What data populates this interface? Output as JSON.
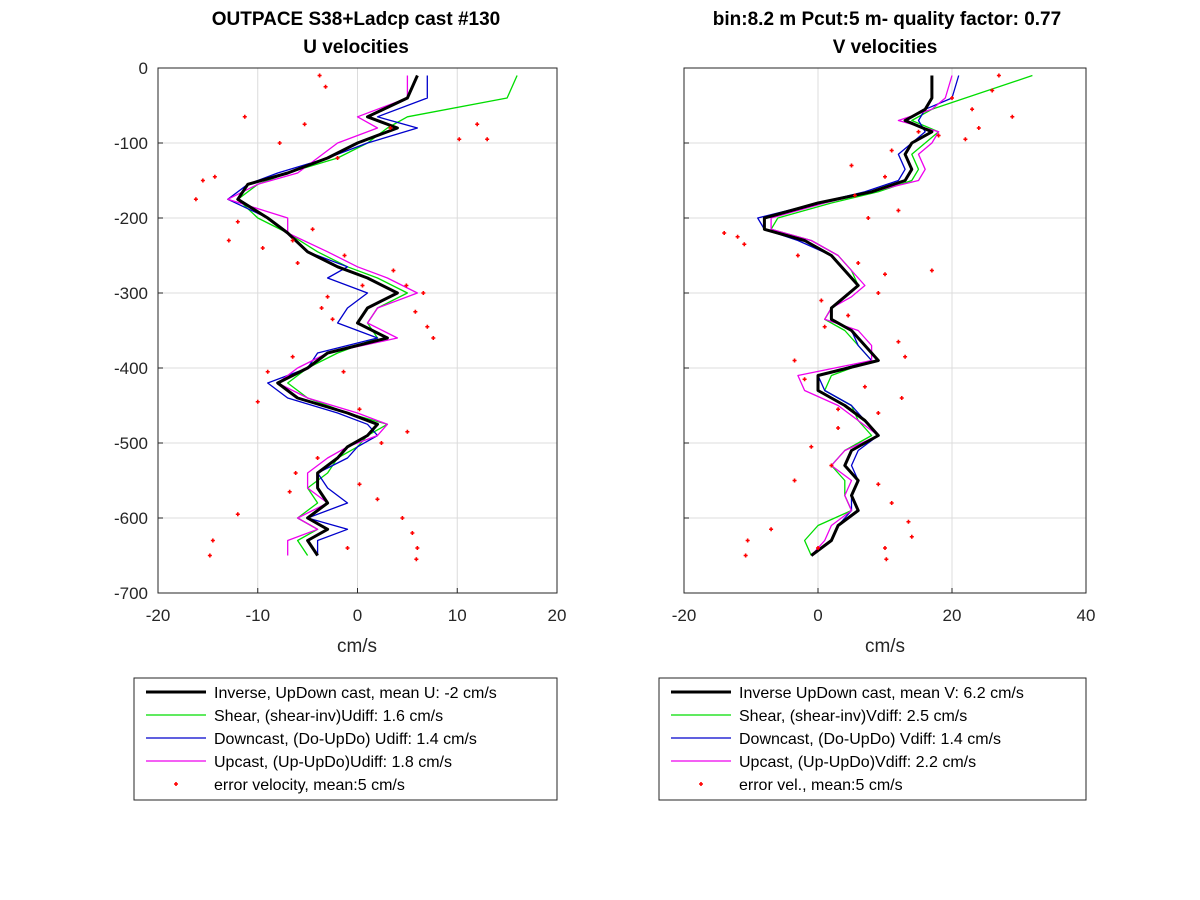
{
  "chart_data": [
    {
      "type": "line",
      "title": "OUTPACE S38+Ladcp cast #130",
      "subtitle": "U velocities",
      "xlabel": "cm/s",
      "ylabel": "",
      "xlim": [
        -20,
        20
      ],
      "ylim": [
        -700,
        0
      ],
      "xticks": [
        "-20",
        "-10",
        "0",
        "10",
        "20"
      ],
      "yticks": [
        "0",
        "-100",
        "-200",
        "-300",
        "-400",
        "-500",
        "-600",
        "-700"
      ],
      "grid": true,
      "legend_position": "below",
      "legend": [
        "Inverse, UpDown cast, mean U:  -2 cm/s",
        "Shear, (shear-inv)Udiff:  1.6 cm/s",
        "Downcast, (Do-UpDo) Udiff:  1.4 cm/s",
        "Upcast, (Up-UpDo)Udiff:  1.8 cm/s",
        "error velocity, mean:5 cm/s"
      ],
      "depth": [
        -10,
        -40,
        -65,
        -80,
        -100,
        -120,
        -140,
        -155,
        -175,
        -200,
        -220,
        -245,
        -265,
        -280,
        -300,
        -320,
        -340,
        -360,
        -380,
        -400,
        -420,
        -440,
        -460,
        -475,
        -490,
        -505,
        -520,
        -540,
        -560,
        -580,
        -600,
        -615,
        -630,
        -650
      ],
      "series": [
        {
          "name": "Inverse",
          "color": "#000000",
          "width": 3,
          "values": [
            6,
            5,
            1,
            4,
            0,
            -3,
            -7,
            -11,
            -12,
            -9,
            -7,
            -5,
            -2,
            1,
            4,
            1,
            0,
            3,
            -3,
            -5,
            -8,
            -6,
            -1,
            2,
            1,
            -1,
            -2,
            -4,
            -4,
            -3,
            -5,
            -3,
            -5,
            -4
          ]
        },
        {
          "name": "Shear",
          "color": "#00dd00",
          "width": 1.3,
          "values": [
            16,
            15,
            5,
            3,
            1,
            -2,
            -7,
            -10,
            -12,
            -10,
            -7,
            -4,
            -1,
            2,
            5,
            2,
            1,
            2,
            -2,
            -5,
            -7,
            -5,
            -1,
            3,
            1,
            0,
            -2,
            -3,
            -5,
            -4,
            -6,
            -4,
            -6,
            -5
          ]
        },
        {
          "name": "Downcast",
          "color": "#0000cc",
          "width": 1.3,
          "values": [
            7,
            7,
            2,
            6,
            1,
            -3,
            -8,
            -11,
            -13,
            -9,
            -7,
            -5,
            -1,
            -3,
            1,
            -1,
            -2,
            2,
            -4,
            -5,
            -9,
            -7,
            -2,
            1,
            2,
            0,
            -1,
            -4,
            -3,
            -1,
            -5,
            -1,
            -4,
            -4
          ]
        },
        {
          "name": "Upcast",
          "color": "#ee00ee",
          "width": 1.3,
          "values": [
            5,
            5,
            0,
            2,
            -2,
            -4,
            -6,
            -10,
            -13,
            -7,
            -7,
            -3,
            0,
            3,
            6,
            2,
            1,
            4,
            -3,
            -6,
            -8,
            -5,
            0,
            3,
            2,
            -1,
            -3,
            -5,
            -5,
            -3,
            -6,
            -4,
            -7,
            -7
          ]
        }
      ],
      "error_velocity": [
        {
          "x": -3.8,
          "y": -10
        },
        {
          "x": -3.2,
          "y": -25
        },
        {
          "x": -11.3,
          "y": -65
        },
        {
          "x": -5.3,
          "y": -75
        },
        {
          "x": 3.3,
          "y": -80
        },
        {
          "x": -7.8,
          "y": -100
        },
        {
          "x": 10.2,
          "y": -95
        },
        {
          "x": 12.0,
          "y": -75
        },
        {
          "x": -2.0,
          "y": -120
        },
        {
          "x": -15.5,
          "y": -150
        },
        {
          "x": -14.3,
          "y": -145
        },
        {
          "x": -16.2,
          "y": -175
        },
        {
          "x": -12.0,
          "y": -205
        },
        {
          "x": -12.9,
          "y": -230
        },
        {
          "x": -4.5,
          "y": -215
        },
        {
          "x": -6.5,
          "y": -230
        },
        {
          "x": -9.5,
          "y": -240
        },
        {
          "x": -6.0,
          "y": -260
        },
        {
          "x": -1.3,
          "y": -250
        },
        {
          "x": 3.6,
          "y": -270
        },
        {
          "x": 4.9,
          "y": -290
        },
        {
          "x": 6.6,
          "y": -300
        },
        {
          "x": -3.6,
          "y": -320
        },
        {
          "x": -2.5,
          "y": -335
        },
        {
          "x": 5.8,
          "y": -325
        },
        {
          "x": 7.6,
          "y": -360
        },
        {
          "x": -6.5,
          "y": -385
        },
        {
          "x": -9.0,
          "y": -405
        },
        {
          "x": -10.0,
          "y": -445
        },
        {
          "x": -1.4,
          "y": -405
        },
        {
          "x": 0.2,
          "y": -455
        },
        {
          "x": 5.0,
          "y": -485
        },
        {
          "x": 2.4,
          "y": -500
        },
        {
          "x": -4.0,
          "y": -520
        },
        {
          "x": -6.2,
          "y": -540
        },
        {
          "x": -6.8,
          "y": -565
        },
        {
          "x": 0.2,
          "y": -555
        },
        {
          "x": 2.0,
          "y": -575
        },
        {
          "x": 4.5,
          "y": -600
        },
        {
          "x": -12.0,
          "y": -595
        },
        {
          "x": 5.5,
          "y": -620
        },
        {
          "x": 6.0,
          "y": -640
        },
        {
          "x": -14.5,
          "y": -630
        },
        {
          "x": -14.8,
          "y": -650
        },
        {
          "x": 5.9,
          "y": -655
        },
        {
          "x": -1.0,
          "y": -640
        },
        {
          "x": 13.0,
          "y": -95
        },
        {
          "x": 0.5,
          "y": -290
        },
        {
          "x": -3.0,
          "y": -305
        },
        {
          "x": 7.0,
          "y": -345
        }
      ]
    },
    {
      "type": "line",
      "title": "bin:8.2 m  Pcut:5 m- quality factor:  0.77",
      "subtitle": "V velocities",
      "xlabel": "cm/s",
      "ylabel": "",
      "xlim": [
        -20,
        40
      ],
      "ylim": [
        -700,
        0
      ],
      "xticks": [
        "-20",
        "0",
        "20",
        "40"
      ],
      "grid": true,
      "legend_position": "below",
      "legend": [
        "Inverse UpDown cast, mean V:  6.2 cm/s",
        "Shear, (shear-inv)Vdiff:  2.5 cm/s",
        "Downcast, (Do-UpDo) Vdiff:  1.4 cm/s",
        "Upcast, (Up-UpDo)Vdiff:  2.2 cm/s",
        "error vel., mean:5 cm/s"
      ],
      "depth": [
        -10,
        -40,
        -55,
        -70,
        -85,
        -100,
        -115,
        -135,
        -150,
        -165,
        -180,
        -200,
        -215,
        -230,
        -250,
        -270,
        -290,
        -305,
        -320,
        -335,
        -350,
        -370,
        -390,
        -410,
        -430,
        -450,
        -470,
        -490,
        -510,
        -530,
        -550,
        -570,
        -590,
        -610,
        -630,
        -650
      ],
      "series": [
        {
          "name": "Inverse",
          "color": "#000000",
          "width": 3,
          "values": [
            17,
            17,
            16,
            13,
            17,
            14,
            13,
            14,
            13,
            8,
            0,
            -8,
            -8,
            -2,
            2,
            4,
            6,
            4,
            2,
            2,
            5,
            7,
            9,
            0,
            0,
            4,
            7,
            9,
            5,
            4,
            6,
            5,
            6,
            3,
            2,
            -1
          ]
        },
        {
          "name": "Shear",
          "color": "#00dd00",
          "width": 1.3,
          "values": [
            32,
            22,
            17,
            14,
            18,
            16,
            14,
            15,
            14,
            9,
            2,
            -6,
            -7,
            -1,
            3,
            5,
            6,
            4,
            2,
            1,
            4,
            6,
            8,
            2,
            1,
            5,
            6,
            8,
            4,
            2,
            4,
            4,
            5,
            0,
            -2,
            -1
          ]
        },
        {
          "name": "Downcast",
          "color": "#0000cc",
          "width": 1.3,
          "values": [
            21,
            20,
            16,
            15,
            16,
            14,
            12,
            13,
            12,
            7,
            0,
            -9,
            -8,
            -3,
            2,
            4,
            6,
            4,
            2,
            2,
            5,
            6,
            8,
            0,
            1,
            5,
            7,
            9,
            6,
            5,
            6,
            5,
            5,
            3,
            2,
            -1
          ]
        },
        {
          "name": "Upcast",
          "color": "#ee00ee",
          "width": 1.3,
          "values": [
            20,
            19,
            17,
            12,
            18,
            17,
            15,
            16,
            15,
            8,
            1,
            -7,
            -7,
            -1,
            3,
            5,
            7,
            5,
            2,
            1,
            6,
            8,
            8,
            -3,
            -2,
            3,
            6,
            9,
            4,
            2,
            5,
            4,
            5,
            2,
            1,
            -1
          ]
        }
      ],
      "error_velocity": [
        {
          "x": 27.0,
          "y": -10
        },
        {
          "x": 26.0,
          "y": -30
        },
        {
          "x": 20.0,
          "y": -40
        },
        {
          "x": 23.0,
          "y": -55
        },
        {
          "x": 29.0,
          "y": -65
        },
        {
          "x": 15.0,
          "y": -85
        },
        {
          "x": 18.0,
          "y": -90
        },
        {
          "x": 22.0,
          "y": -95
        },
        {
          "x": 11.0,
          "y": -110
        },
        {
          "x": 5.0,
          "y": -130
        },
        {
          "x": 10.0,
          "y": -145
        },
        {
          "x": 5.5,
          "y": -170
        },
        {
          "x": 12.0,
          "y": -190
        },
        {
          "x": 7.5,
          "y": -200
        },
        {
          "x": -14.0,
          "y": -220
        },
        {
          "x": -12.0,
          "y": -225
        },
        {
          "x": -11.0,
          "y": -235
        },
        {
          "x": -3.0,
          "y": -250
        },
        {
          "x": 6.0,
          "y": -260
        },
        {
          "x": 10.0,
          "y": -275
        },
        {
          "x": 9.0,
          "y": -300
        },
        {
          "x": 0.5,
          "y": -310
        },
        {
          "x": 1.0,
          "y": -345
        },
        {
          "x": 4.5,
          "y": -330
        },
        {
          "x": 12.0,
          "y": -365
        },
        {
          "x": 13.0,
          "y": -385
        },
        {
          "x": -3.5,
          "y": -390
        },
        {
          "x": -2.0,
          "y": -415
        },
        {
          "x": 7.0,
          "y": -425
        },
        {
          "x": 12.5,
          "y": -440
        },
        {
          "x": 9.0,
          "y": -460
        },
        {
          "x": 3.0,
          "y": -480
        },
        {
          "x": 2.0,
          "y": -530
        },
        {
          "x": -3.5,
          "y": -550
        },
        {
          "x": 9.0,
          "y": -555
        },
        {
          "x": 11.0,
          "y": -580
        },
        {
          "x": 13.5,
          "y": -605
        },
        {
          "x": -7.0,
          "y": -615
        },
        {
          "x": 14.0,
          "y": -625
        },
        {
          "x": -10.5,
          "y": -630
        },
        {
          "x": -10.8,
          "y": -650
        },
        {
          "x": 10.0,
          "y": -640
        },
        {
          "x": 10.2,
          "y": -655
        },
        {
          "x": 0.0,
          "y": -640
        },
        {
          "x": 17.0,
          "y": -270
        },
        {
          "x": 24.0,
          "y": -80
        },
        {
          "x": 3.0,
          "y": -455
        },
        {
          "x": -1.0,
          "y": -505
        }
      ]
    }
  ]
}
